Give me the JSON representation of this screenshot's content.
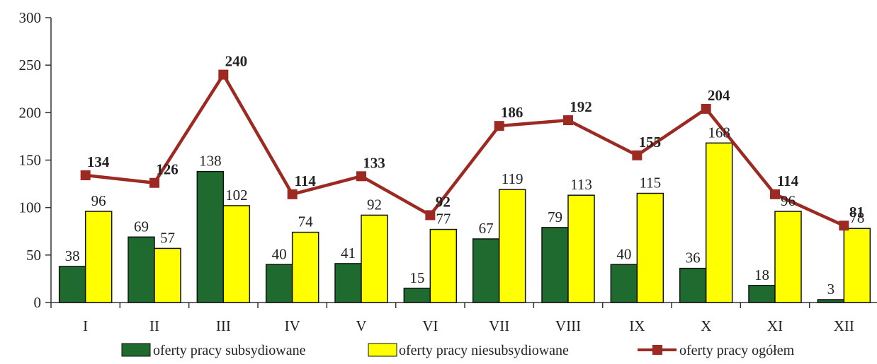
{
  "chart_data": {
    "type": "bar",
    "categories": [
      "I",
      "II",
      "III",
      "IV",
      "V",
      "VI",
      "VII",
      "VIII",
      "IX",
      "X",
      "XI",
      "XII"
    ],
    "series": [
      {
        "name": "oferty pracy subsydiowane",
        "type": "bar",
        "color": "#1f6b2f",
        "values": [
          38,
          69,
          138,
          40,
          41,
          15,
          67,
          79,
          40,
          36,
          18,
          3
        ]
      },
      {
        "name": "oferty pracy niesubsydiowane",
        "type": "bar",
        "color": "#ffff00",
        "values": [
          96,
          57,
          102,
          74,
          92,
          77,
          119,
          113,
          115,
          168,
          96,
          78
        ]
      },
      {
        "name": "oferty pracy ogółem",
        "type": "line",
        "color": "#9c2a22",
        "values": [
          134,
          126,
          240,
          114,
          133,
          92,
          186,
          192,
          155,
          204,
          114,
          81
        ]
      }
    ],
    "y_ticks": [
      "0",
      "50",
      "100",
      "150",
      "200",
      "250",
      "300"
    ],
    "ylim": [
      0,
      300
    ],
    "grid": false,
    "legend_position": "bottom"
  }
}
